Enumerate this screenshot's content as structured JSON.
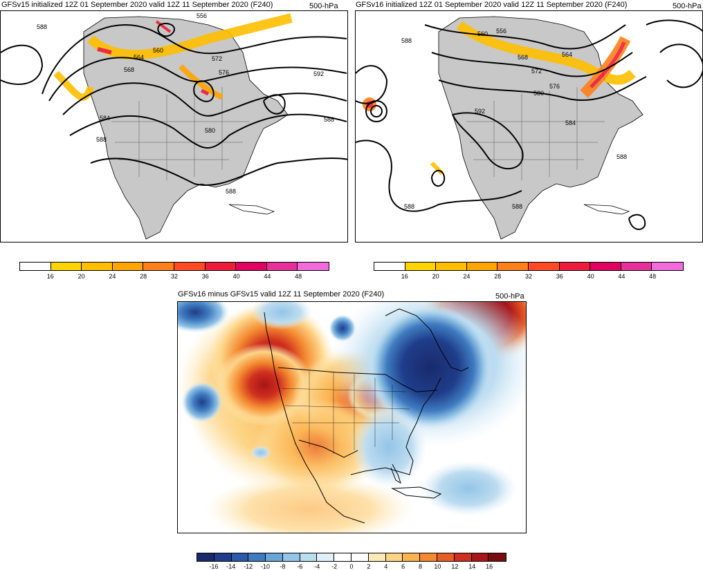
{
  "panels": [
    {
      "title": "GFSv15 initialized 12Z 01 September 2020 valid 12Z 11 September 2020 (F240)",
      "unit": "500-hPa",
      "contour_labels": [
        "588",
        "556",
        "560",
        "564",
        "568",
        "572",
        "576",
        "592",
        "588",
        "584",
        "588",
        "580",
        "588"
      ]
    },
    {
      "title": "GFSv16 initialized 12Z 01 September 2020 valid 12Z 11 September 2020 (F240)",
      "unit": "500-hPa",
      "contour_labels": [
        "588",
        "560",
        "556",
        "564",
        "568",
        "572",
        "576",
        "580",
        "592",
        "584",
        "588",
        "588",
        "588"
      ]
    },
    {
      "title": "GFSv16 minus GFSv15 valid 12Z 11 September 2020 (F240)",
      "unit": "500-hPa"
    }
  ],
  "colorbar_wind": {
    "ticks": [
      "16",
      "20",
      "24",
      "28",
      "32",
      "36",
      "40",
      "44",
      "48"
    ],
    "colors": [
      "#ffffff",
      "#ffd400",
      "#ffbf00",
      "#ffa500",
      "#ff7f1a",
      "#ff4a24",
      "#ee1c3a",
      "#e0005f",
      "#e8309a",
      "#f26bdd"
    ]
  },
  "colorbar_diff": {
    "ticks": [
      "-16",
      "-14",
      "-12",
      "-10",
      "-8",
      "-6",
      "-4",
      "-2",
      "0",
      "2",
      "4",
      "6",
      "8",
      "10",
      "12",
      "14",
      "16"
    ],
    "colors": [
      "#1a2a6c",
      "#1f3d8a",
      "#2a5aa8",
      "#3f7bc0",
      "#6aa5d8",
      "#94c4e6",
      "#bcdcf0",
      "#e0f0fa",
      "#ffffff",
      "#ffffff",
      "#fde9b8",
      "#fdd486",
      "#fbb350",
      "#f48a30",
      "#e85d25",
      "#cf2f1e",
      "#a81418",
      "#7a0c0f"
    ]
  },
  "land_color": "#c8c8c8"
}
